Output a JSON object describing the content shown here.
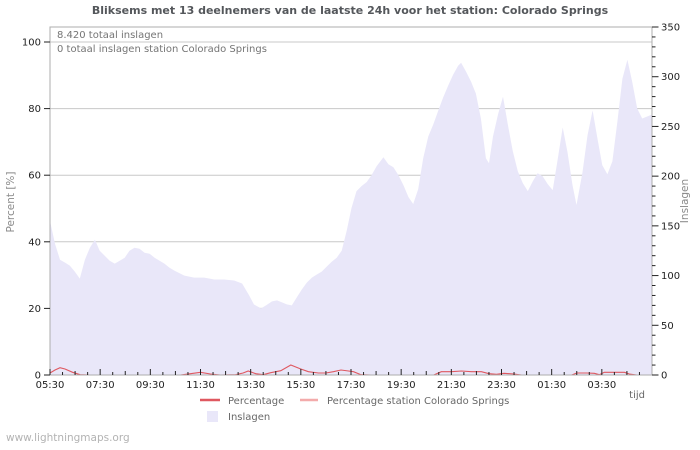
{
  "title": "Bliksems met 13 deelnemers van de laatste 24h voor het station: Colorado Springs",
  "annotations": {
    "total": "8.420 totaal inslagen",
    "station_total": "0 totaal inslagen station Colorado Springs"
  },
  "watermark": "www.lightningmaps.org",
  "axes": {
    "left": {
      "label": "Percent  [%]",
      "ticks": [
        0,
        20,
        40,
        60,
        80,
        100
      ],
      "range": [
        0,
        100
      ]
    },
    "right": {
      "label": "Inslagen",
      "ticks": [
        0,
        50,
        100,
        150,
        200,
        250,
        300,
        350
      ],
      "minor_step": 10,
      "range": [
        0,
        350
      ]
    },
    "x": {
      "label": "tijd",
      "tick_labels": [
        "05:30",
        "07:30",
        "09:30",
        "11:30",
        "13:30",
        "15:30",
        "17:30",
        "19:30",
        "21:30",
        "23:30",
        "01:30",
        "03:30"
      ],
      "hours_per_major": 2,
      "range_hours": [
        0,
        24
      ]
    }
  },
  "legend": [
    {
      "label": "Percentage",
      "color": "#df5860",
      "type": "line"
    },
    {
      "label": "Percentage station Colorado Springs",
      "color": "#f3abab",
      "type": "line"
    },
    {
      "label": "Inslagen",
      "color": "#e9e7f9",
      "type": "area"
    }
  ],
  "chart_data": {
    "type": "area",
    "x_unit": "hours since 05:30",
    "grid": true,
    "series": [
      {
        "name": "Inslagen",
        "type": "area",
        "axis": "right",
        "color": "#e9e7f9",
        "points": [
          [
            0,
            155
          ],
          [
            0.2,
            132
          ],
          [
            0.4,
            116
          ],
          [
            0.6,
            113
          ],
          [
            0.79,
            110
          ],
          [
            0.99,
            104
          ],
          [
            1.19,
            97
          ],
          [
            1.39,
            116
          ],
          [
            1.59,
            128
          ],
          [
            1.79,
            136
          ],
          [
            1.98,
            125
          ],
          [
            2.18,
            120
          ],
          [
            2.38,
            115
          ],
          [
            2.58,
            112
          ],
          [
            2.78,
            115
          ],
          [
            2.98,
            118
          ],
          [
            3.17,
            125
          ],
          [
            3.37,
            128
          ],
          [
            3.57,
            127
          ],
          [
            3.77,
            123
          ],
          [
            3.97,
            122
          ],
          [
            4.17,
            118
          ],
          [
            4.37,
            115
          ],
          [
            4.56,
            112
          ],
          [
            4.76,
            108
          ],
          [
            4.96,
            105
          ],
          [
            5.36,
            100
          ],
          [
            5.75,
            98
          ],
          [
            6.15,
            98
          ],
          [
            6.55,
            96
          ],
          [
            6.94,
            96
          ],
          [
            7.34,
            95
          ],
          [
            7.66,
            92
          ],
          [
            7.94,
            80
          ],
          [
            8.13,
            71
          ],
          [
            8.41,
            67
          ],
          [
            8.61,
            70
          ],
          [
            8.85,
            74
          ],
          [
            9.05,
            75
          ],
          [
            9.25,
            73
          ],
          [
            9.44,
            71
          ],
          [
            9.64,
            70
          ],
          [
            9.84,
            78
          ],
          [
            10.04,
            86
          ],
          [
            10.24,
            93
          ],
          [
            10.44,
            98
          ],
          [
            10.63,
            101
          ],
          [
            10.83,
            104
          ],
          [
            11.03,
            109
          ],
          [
            11.23,
            114
          ],
          [
            11.43,
            118
          ],
          [
            11.63,
            125
          ],
          [
            11.83,
            145
          ],
          [
            12.02,
            168
          ],
          [
            12.22,
            185
          ],
          [
            12.42,
            190
          ],
          [
            12.62,
            194
          ],
          [
            12.82,
            201
          ],
          [
            13.02,
            210
          ],
          [
            13.29,
            219
          ],
          [
            13.49,
            212
          ],
          [
            13.69,
            209
          ],
          [
            13.89,
            201
          ],
          [
            14.09,
            191
          ],
          [
            14.29,
            179
          ],
          [
            14.48,
            172
          ],
          [
            14.68,
            187
          ],
          [
            14.88,
            218
          ],
          [
            15.08,
            240
          ],
          [
            15.28,
            252
          ],
          [
            15.48,
            266
          ],
          [
            15.67,
            279
          ],
          [
            15.87,
            291
          ],
          [
            16.07,
            302
          ],
          [
            16.27,
            311
          ],
          [
            16.39,
            314
          ],
          [
            16.59,
            305
          ],
          [
            16.79,
            295
          ],
          [
            16.98,
            283
          ],
          [
            17.18,
            258
          ],
          [
            17.38,
            218
          ],
          [
            17.5,
            213
          ],
          [
            17.66,
            240
          ],
          [
            17.86,
            262
          ],
          [
            18.06,
            280
          ],
          [
            18.25,
            252
          ],
          [
            18.45,
            225
          ],
          [
            18.65,
            205
          ],
          [
            18.85,
            193
          ],
          [
            19.05,
            185
          ],
          [
            19.25,
            195
          ],
          [
            19.44,
            203
          ],
          [
            19.64,
            200
          ],
          [
            19.84,
            192
          ],
          [
            20.04,
            186
          ],
          [
            20.24,
            217
          ],
          [
            20.44,
            249
          ],
          [
            20.63,
            224
          ],
          [
            20.83,
            191
          ],
          [
            20.99,
            171
          ],
          [
            21.23,
            204
          ],
          [
            21.43,
            241
          ],
          [
            21.63,
            266
          ],
          [
            21.83,
            237
          ],
          [
            22.02,
            211
          ],
          [
            22.22,
            202
          ],
          [
            22.42,
            215
          ],
          [
            22.62,
            255
          ],
          [
            22.82,
            298
          ],
          [
            23.02,
            317
          ],
          [
            23.21,
            295
          ],
          [
            23.41,
            268
          ],
          [
            23.61,
            258
          ],
          [
            23.81,
            260
          ],
          [
            24,
            262
          ]
        ]
      },
      {
        "name": "Percentage",
        "type": "line",
        "axis": "left",
        "color": "#df5860",
        "points": [
          [
            0,
            0.6
          ],
          [
            0.2,
            1.5
          ],
          [
            0.4,
            2.2
          ],
          [
            0.6,
            1.8
          ],
          [
            0.9,
            0.8
          ],
          [
            1.2,
            0.1
          ],
          [
            1.6,
            0
          ],
          [
            5.2,
            0
          ],
          [
            5.6,
            0.4
          ],
          [
            6,
            0.8
          ],
          [
            6.4,
            0.3
          ],
          [
            6.8,
            0
          ],
          [
            7.4,
            0.1
          ],
          [
            7.7,
            0.6
          ],
          [
            7.9,
            1.2
          ],
          [
            8.2,
            0.4
          ],
          [
            8.5,
            0.1
          ],
          [
            8.8,
            0.7
          ],
          [
            9.2,
            1.3
          ],
          [
            9.6,
            3
          ],
          [
            10,
            1.8
          ],
          [
            10.3,
            1
          ],
          [
            10.7,
            0.6
          ],
          [
            11,
            0.6
          ],
          [
            11.3,
            1
          ],
          [
            11.6,
            1.5
          ],
          [
            11.9,
            1.2
          ],
          [
            12.1,
            1
          ],
          [
            12.4,
            0.1
          ],
          [
            12.8,
            0
          ],
          [
            15.3,
            0
          ],
          [
            15.6,
            1
          ],
          [
            16,
            1
          ],
          [
            16.4,
            1.2
          ],
          [
            16.8,
            1
          ],
          [
            17.2,
            1
          ],
          [
            17.5,
            0.4
          ],
          [
            17.8,
            0.2
          ],
          [
            18.1,
            0.5
          ],
          [
            18.5,
            0.3
          ],
          [
            18.8,
            0
          ],
          [
            20.8,
            0
          ],
          [
            21,
            0.6
          ],
          [
            21.4,
            0.6
          ],
          [
            21.7,
            0.5
          ],
          [
            21.9,
            0.1
          ],
          [
            22.1,
            0.8
          ],
          [
            22.5,
            0.8
          ],
          [
            22.9,
            0.8
          ],
          [
            23.1,
            0.3
          ],
          [
            23.4,
            0
          ],
          [
            24,
            0
          ]
        ]
      },
      {
        "name": "Percentage station Colorado Springs",
        "type": "line",
        "axis": "left",
        "color": "#f3abab",
        "points": [
          [
            0,
            0
          ],
          [
            24,
            0
          ]
        ]
      }
    ]
  }
}
